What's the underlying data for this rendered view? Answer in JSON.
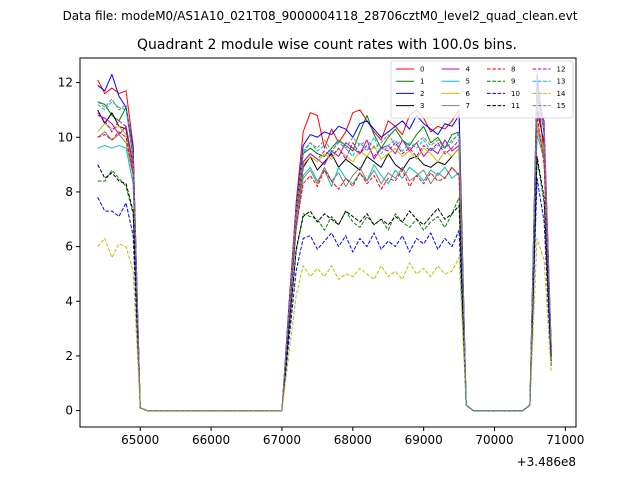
{
  "figure": {
    "suptitle": "Data file: modeM0/AS1A10_021T08_9000004118_28706cztM0_level2_quad_clean.evt"
  },
  "chart_data": {
    "type": "line",
    "title": "Quadrant 2 module wise count rates with 100.0s bins.",
    "xlabel": "",
    "ylabel": "",
    "x_offset_label": "+3.486e8",
    "xlim": [
      64150,
      71150
    ],
    "ylim": [
      -0.6,
      12.9
    ],
    "xticks": [
      65000,
      66000,
      67000,
      68000,
      69000,
      70000,
      71000
    ],
    "xtick_labels": [
      "65000",
      "66000",
      "67000",
      "68000",
      "69000",
      "70000",
      "71000"
    ],
    "yticks": [
      0,
      2,
      4,
      6,
      8,
      10,
      12
    ],
    "ytick_labels": [
      "0",
      "2",
      "4",
      "6",
      "8",
      "10",
      "12"
    ],
    "grid": false,
    "legend_placement": "top-right",
    "legend_columns": 4,
    "segments": [
      {
        "x_start": 64400,
        "x_end": 65000,
        "n": 7
      },
      {
        "x_start": 65100,
        "x_end": 67000,
        "n": 20,
        "zero": true
      },
      {
        "x_start": 67100,
        "x_end": 69600,
        "n": 26
      },
      {
        "x_start": 69700,
        "x_end": 70400,
        "n": 8,
        "zero": true
      },
      {
        "x_start": 70500,
        "x_end": 70800,
        "n": 4
      }
    ],
    "series": [
      {
        "name": "0",
        "color": "#ff0000",
        "dash": "solid",
        "seg1": [
          12.1,
          11.6,
          11.8,
          11.6,
          11.7,
          9.7,
          0.1
        ],
        "seg3": [
          3.8,
          7.6,
          10.2,
          10.9,
          10.8,
          9.6,
          10.3,
          9.8,
          10.2,
          10.9,
          11.0,
          10.6,
          10.2,
          9.9,
          10.6,
          10.4,
          10.1,
          10.8,
          11.0,
          10.7,
          10.2,
          10.4,
          10.3,
          10.6,
          11.0,
          0.2
        ],
        "seg5": [
          0.2,
          12.1,
          9.2,
          2.4
        ]
      },
      {
        "name": "1",
        "color": "#008000",
        "dash": "solid",
        "seg1": [
          11.3,
          11.2,
          10.8,
          10.6,
          11.1,
          9.2,
          0.1
        ],
        "seg3": [
          3.6,
          7.2,
          9.4,
          9.6,
          9.4,
          9.3,
          9.6,
          9.9,
          9.7,
          9.5,
          10.2,
          10.8,
          10.1,
          9.6,
          10.0,
          10.3,
          9.9,
          9.7,
          10.1,
          10.4,
          9.8,
          10.0,
          9.6,
          10.1,
          10.2,
          0.2
        ],
        "seg5": [
          0.2,
          11.6,
          10.3,
          2.2
        ]
      },
      {
        "name": "2",
        "color": "#0000ff",
        "dash": "solid",
        "seg1": [
          11.9,
          11.7,
          12.3,
          11.5,
          11.1,
          9.6,
          0.1
        ],
        "seg3": [
          3.9,
          7.4,
          9.7,
          10.1,
          10.0,
          10.2,
          10.1,
          10.4,
          10.3,
          10.0,
          10.5,
          10.6,
          10.3,
          10.0,
          10.2,
          10.4,
          10.6,
          10.3,
          10.8,
          10.5,
          10.3,
          10.1,
          10.5,
          10.4,
          10.8,
          0.2
        ],
        "seg5": [
          0.2,
          12.3,
          10.1,
          2.3
        ]
      },
      {
        "name": "3",
        "color": "#000000",
        "dash": "solid",
        "seg1": [
          11.0,
          10.5,
          10.9,
          10.4,
          10.3,
          8.7,
          0.1
        ],
        "seg3": [
          3.4,
          6.9,
          8.9,
          9.3,
          8.8,
          9.1,
          9.4,
          8.9,
          9.2,
          9.0,
          8.8,
          9.3,
          9.1,
          8.9,
          9.4,
          9.0,
          8.8,
          9.2,
          9.3,
          9.0,
          8.9,
          9.1,
          9.0,
          9.3,
          9.6,
          0.2
        ],
        "seg5": [
          0.2,
          11.0,
          9.8,
          2.0
        ]
      },
      {
        "name": "4",
        "color": "#bf00bf",
        "dash": "solid",
        "seg1": [
          10.8,
          10.7,
          10.5,
          10.1,
          10.4,
          9.0,
          0.1
        ],
        "seg3": [
          3.6,
          7.1,
          9.1,
          9.4,
          9.2,
          9.0,
          9.5,
          9.3,
          9.8,
          9.6,
          9.4,
          9.9,
          9.2,
          9.6,
          9.7,
          9.4,
          9.9,
          9.5,
          9.8,
          9.3,
          9.6,
          9.4,
          9.9,
          9.5,
          9.7,
          0.2
        ],
        "seg5": [
          0.2,
          11.4,
          10.6,
          2.3
        ]
      },
      {
        "name": "5",
        "color": "#00bfbf",
        "dash": "solid",
        "seg1": [
          9.6,
          9.7,
          9.6,
          9.7,
          9.6,
          8.3,
          0.1
        ],
        "seg3": [
          3.3,
          6.6,
          8.6,
          8.9,
          8.4,
          8.8,
          8.2,
          8.9,
          8.5,
          8.3,
          8.7,
          8.4,
          9.0,
          8.6,
          8.3,
          8.8,
          8.5,
          8.9,
          8.7,
          8.4,
          8.8,
          8.6,
          8.9,
          8.5,
          8.7,
          0.2
        ],
        "seg5": [
          0.2,
          10.1,
          9.2,
          2.0
        ]
      },
      {
        "name": "6",
        "color": "#bfbf00",
        "dash": "solid",
        "seg1": [
          10.2,
          10.5,
          10.3,
          10.4,
          10.1,
          8.8,
          0.1
        ],
        "seg3": [
          3.5,
          7.0,
          9.0,
          9.3,
          9.1,
          9.4,
          9.2,
          9.6,
          9.3,
          9.1,
          9.5,
          9.3,
          9.7,
          9.2,
          9.4,
          9.6,
          9.3,
          9.5,
          9.2,
          9.6,
          9.4,
          9.1,
          9.5,
          9.3,
          9.6,
          0.2
        ],
        "seg5": [
          0.2,
          10.5,
          9.5,
          2.1
        ]
      },
      {
        "name": "7",
        "color": "#808080",
        "dash": "solid",
        "seg1": [
          10.0,
          10.2,
          9.9,
          10.1,
          9.8,
          8.6,
          0.1
        ],
        "seg3": [
          3.3,
          6.8,
          8.5,
          8.8,
          8.3,
          8.9,
          8.4,
          8.7,
          8.2,
          8.6,
          8.9,
          8.4,
          8.8,
          8.3,
          8.7,
          8.5,
          8.9,
          8.4,
          8.6,
          8.8,
          8.3,
          8.7,
          8.5,
          8.9,
          8.6,
          0.2
        ],
        "seg5": [
          0.2,
          10.3,
          9.4,
          2.0
        ]
      },
      {
        "name": "8",
        "color": "#ff0000",
        "dash": "dashed",
        "seg1": [
          10.0,
          10.1,
          9.9,
          10.2,
          10.0,
          8.7,
          0.1
        ],
        "seg3": [
          3.4,
          6.7,
          8.3,
          8.6,
          8.2,
          8.8,
          8.4,
          8.1,
          8.5,
          8.2,
          8.7,
          8.3,
          8.6,
          8.1,
          8.5,
          8.4,
          8.8,
          8.2,
          8.6,
          8.3,
          8.7,
          8.4,
          8.5,
          8.9,
          8.6,
          0.2
        ],
        "seg5": [
          0.2,
          10.8,
          9.0,
          2.0
        ]
      },
      {
        "name": "9",
        "color": "#008000",
        "dash": "dashed",
        "seg1": [
          8.4,
          8.4,
          8.8,
          8.5,
          8.2,
          7.2,
          0.1
        ],
        "seg3": [
          2.9,
          5.8,
          7.2,
          7.1,
          7.0,
          6.6,
          7.1,
          6.8,
          7.3,
          6.9,
          6.7,
          7.1,
          6.8,
          7.0,
          6.6,
          7.2,
          6.9,
          6.7,
          7.0,
          6.6,
          6.9,
          7.1,
          6.7,
          7.2,
          7.8,
          0.2
        ],
        "seg5": [
          0.2,
          9.2,
          7.6,
          1.7
        ]
      },
      {
        "name": "10",
        "color": "#0000ff",
        "dash": "dashed",
        "seg1": [
          7.8,
          7.3,
          7.3,
          7.1,
          7.6,
          6.4,
          0.1
        ],
        "seg3": [
          2.6,
          5.1,
          6.3,
          6.4,
          5.9,
          6.2,
          6.5,
          6.0,
          6.4,
          5.8,
          6.3,
          6.0,
          6.5,
          5.9,
          6.2,
          6.0,
          6.4,
          5.8,
          6.3,
          6.1,
          6.5,
          5.9,
          6.3,
          6.0,
          6.6,
          0.2
        ],
        "seg5": [
          0.2,
          8.5,
          6.9,
          1.6
        ]
      },
      {
        "name": "11",
        "color": "#000000",
        "dash": "dashed",
        "seg1": [
          9.0,
          8.5,
          8.7,
          8.4,
          8.3,
          7.3,
          0.1
        ],
        "seg3": [
          3.0,
          5.9,
          7.1,
          7.3,
          6.9,
          7.2,
          7.0,
          6.8,
          7.3,
          7.1,
          6.9,
          7.2,
          6.8,
          7.0,
          6.8,
          7.1,
          6.9,
          7.3,
          7.0,
          6.8,
          7.1,
          7.4,
          7.0,
          7.2,
          7.5,
          0.2
        ],
        "seg5": [
          0.2,
          9.3,
          7.8,
          1.8
        ]
      },
      {
        "name": "12",
        "color": "#bf00bf",
        "dash": "dashed",
        "seg1": [
          10.9,
          10.6,
          10.2,
          10.6,
          10.4,
          8.9,
          0.1
        ],
        "seg3": [
          3.6,
          7.1,
          9.1,
          9.4,
          9.2,
          9.5,
          9.3,
          9.6,
          9.2,
          9.8,
          9.4,
          9.7,
          9.3,
          9.6,
          9.5,
          9.8,
          9.4,
          9.6,
          9.3,
          9.7,
          9.5,
          9.8,
          9.4,
          9.6,
          9.9,
          0.2
        ],
        "seg5": [
          0.2,
          11.2,
          9.7,
          2.2
        ]
      },
      {
        "name": "13",
        "color": "#00bfbf",
        "dash": "dashed",
        "seg1": [
          11.2,
          11.0,
          11.3,
          11.1,
          11.0,
          9.3,
          0.1
        ],
        "seg3": [
          3.7,
          7.3,
          9.4,
          9.8,
          9.5,
          9.7,
          9.4,
          9.9,
          9.6,
          9.3,
          9.8,
          9.5,
          10.0,
          9.4,
          9.7,
          9.9,
          9.5,
          9.8,
          9.6,
          9.9,
          9.5,
          9.7,
          9.6,
          9.9,
          10.1,
          0.2
        ],
        "seg5": [
          0.2,
          11.7,
          10.2,
          2.3
        ]
      },
      {
        "name": "14",
        "color": "#bfbf00",
        "dash": "dashed",
        "seg1": [
          6.0,
          6.3,
          5.6,
          6.1,
          6.0,
          5.1,
          0.1
        ],
        "seg3": [
          2.1,
          4.2,
          5.3,
          4.9,
          5.2,
          4.9,
          5.3,
          4.8,
          5.0,
          4.9,
          5.2,
          5.0,
          4.8,
          5.3,
          4.9,
          5.1,
          4.8,
          5.4,
          5.0,
          5.2,
          4.9,
          5.3,
          5.0,
          5.1,
          5.6,
          0.2
        ],
        "seg5": [
          0.2,
          6.3,
          5.5,
          1.4
        ]
      },
      {
        "name": "15",
        "color": "#808080",
        "dash": "dashed",
        "seg1": [
          11.3,
          11.1,
          11.4,
          11.0,
          11.2,
          9.4,
          0.1
        ],
        "seg3": [
          3.7,
          7.4,
          9.5,
          9.8,
          9.6,
          9.9,
          9.5,
          9.8,
          9.6,
          10.0,
          9.7,
          9.9,
          9.6,
          9.8,
          10.1,
          9.7,
          9.9,
          9.6,
          9.8,
          10.0,
          9.7,
          9.9,
          9.6,
          9.8,
          10.2,
          0.2
        ],
        "seg5": [
          0.2,
          11.9,
          10.4,
          2.4
        ]
      }
    ]
  }
}
